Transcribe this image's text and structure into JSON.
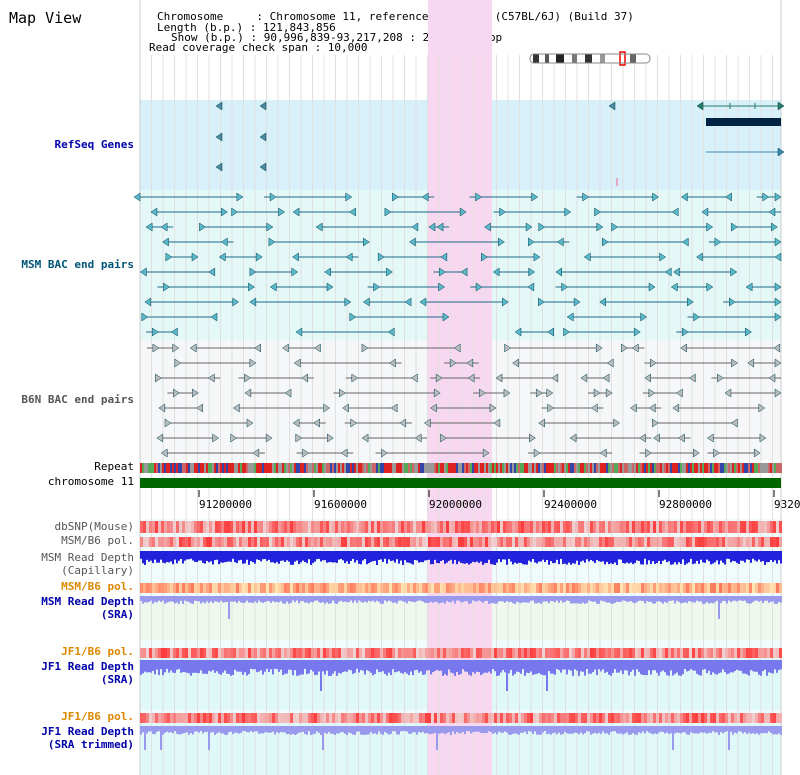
{
  "header": {
    "title": "Map View",
    "info_lines": [
      "Chromosome     : Chromosome 11, reference assembly (C57BL/6J) (Build 37)",
      "Length (b.p.) : 121,843,856",
      "Show (b.p.) : 90,996,839-93,217,208 : 2,220,370 bp",
      "Read coverage check span : 10,000"
    ]
  },
  "tracks": {
    "refseq": "RefSeq Genes",
    "msm_bac": "MSM BAC end pairs",
    "b6n_bac": "B6N BAC end pairs",
    "repeat": "Repeat",
    "chromosome": "chromosome 11",
    "dbsnp": "dbSNP(Mouse)",
    "msm_b6_pol_1": "MSM/B6 pol.",
    "msm_read_depth_cap_1": "MSM Read Depth",
    "msm_read_depth_cap_2": "(Capillary)",
    "msm_b6_pol_2": "MSM/B6 pol.",
    "msm_read_depth_sra_1": "MSM Read Depth",
    "msm_read_depth_sra_2": "(SRA)",
    "jf1_b6_pol_1": "JF1/B6 pol.",
    "jf1_read_depth_sra_1": "JF1 Read Depth",
    "jf1_read_depth_sra_2": "(SRA)",
    "jf1_b6_pol_2": "JF1/B6 pol.",
    "jf1_read_depth_trim_1": "JF1 Read Depth",
    "jf1_read_depth_trim_2": "(SRA trimmed)"
  },
  "scale": {
    "ticks": [
      "91200000",
      "91600000",
      "92000000",
      "92400000",
      "92800000",
      "9320"
    ]
  },
  "colors": {
    "refseq_label": "#0000aa",
    "msm_label": "#005577",
    "b6n_label": "#555555",
    "pol_label": "#dd8800",
    "depth_label": "#0000aa",
    "highlight": "#f8d8f0",
    "chromosome_bar": "#006600"
  }
}
